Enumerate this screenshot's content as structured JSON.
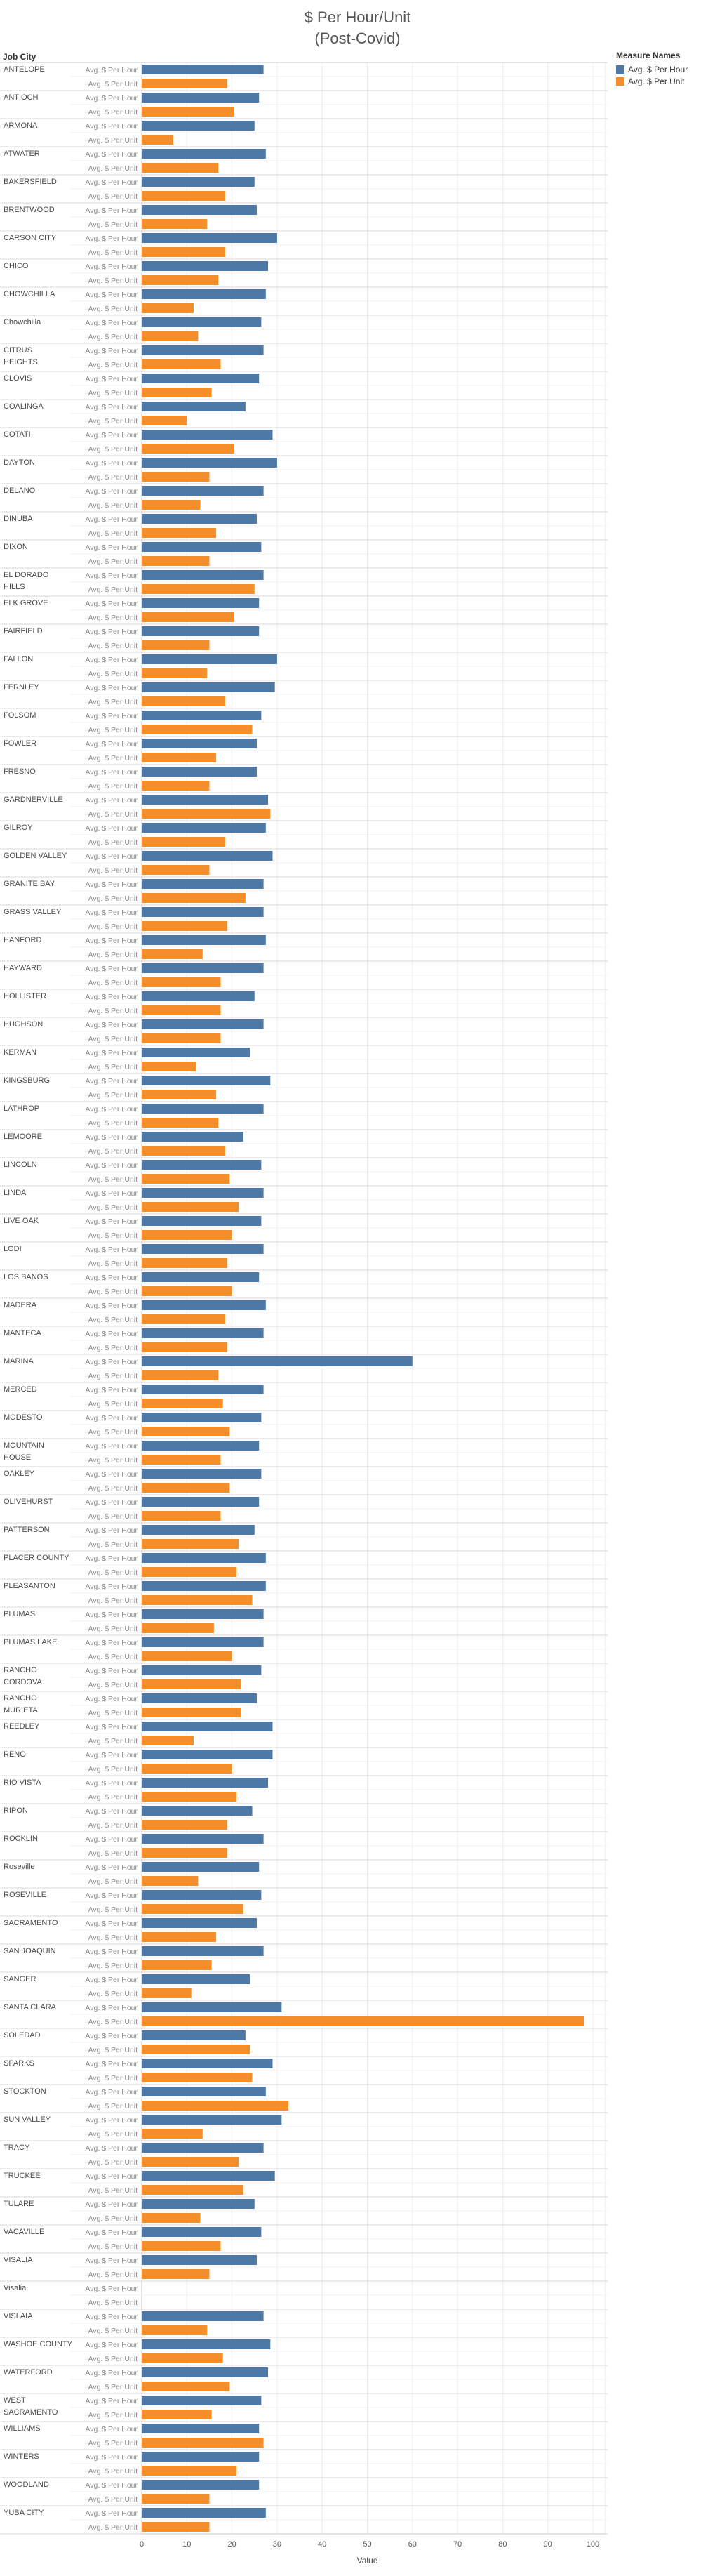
{
  "chart_data": {
    "type": "bar",
    "orientation": "horizontal",
    "title": "$ Per Hour/Unit",
    "subtitle": "(Post-Covid)",
    "row_header": "Job City",
    "xlabel": "Value",
    "xlim": [
      0,
      100
    ],
    "xticks": [
      0,
      10,
      20,
      30,
      40,
      50,
      60,
      70,
      80,
      90,
      100
    ],
    "grid": true,
    "legend": {
      "title": "Measure Names",
      "position": "top-right",
      "items": [
        {
          "name": "Avg. $ Per Hour",
          "color": "#4e79a7"
        },
        {
          "name": "Avg. $ Per Unit",
          "color": "#f28e2b"
        }
      ]
    },
    "measures": [
      "Avg. $ Per Hour",
      "Avg. $ Per Unit"
    ],
    "rows": [
      {
        "city": "ANTELOPE",
        "hour": 27,
        "unit": 19
      },
      {
        "city": "ANTIOCH",
        "hour": 26,
        "unit": 20.5
      },
      {
        "city": "ARMONA",
        "hour": 25,
        "unit": 7
      },
      {
        "city": "ATWATER",
        "hour": 27.5,
        "unit": 17
      },
      {
        "city": "BAKERSFIELD",
        "hour": 25,
        "unit": 18.5
      },
      {
        "city": "BRENTWOOD",
        "hour": 25.5,
        "unit": 14.5
      },
      {
        "city": "CARSON CITY",
        "hour": 30,
        "unit": 18.5
      },
      {
        "city": "CHICO",
        "hour": 28,
        "unit": 17
      },
      {
        "city": "CHOWCHILLA",
        "hour": 27.5,
        "unit": 11.5
      },
      {
        "city": "Chowchilla",
        "hour": 26.5,
        "unit": 12.5
      },
      {
        "city": "CITRUS HEIGHTS",
        "hour": 27,
        "unit": 17.5
      },
      {
        "city": "CLOVIS",
        "hour": 26,
        "unit": 15.5
      },
      {
        "city": "COALINGA",
        "hour": 23,
        "unit": 10
      },
      {
        "city": "COTATI",
        "hour": 29,
        "unit": 20.5
      },
      {
        "city": "DAYTON",
        "hour": 30,
        "unit": 15
      },
      {
        "city": "DELANO",
        "hour": 27,
        "unit": 13
      },
      {
        "city": "DINUBA",
        "hour": 25.5,
        "unit": 16.5
      },
      {
        "city": "DIXON",
        "hour": 26.5,
        "unit": 15
      },
      {
        "city": "EL DORADO HILLS",
        "hour": 27,
        "unit": 25
      },
      {
        "city": "ELK GROVE",
        "hour": 26,
        "unit": 20.5
      },
      {
        "city": "FAIRFIELD",
        "hour": 26,
        "unit": 15
      },
      {
        "city": "FALLON",
        "hour": 30,
        "unit": 14.5
      },
      {
        "city": "FERNLEY",
        "hour": 29.5,
        "unit": 18.5
      },
      {
        "city": "FOLSOM",
        "hour": 26.5,
        "unit": 24.5
      },
      {
        "city": "FOWLER",
        "hour": 25.5,
        "unit": 16.5
      },
      {
        "city": "FRESNO",
        "hour": 25.5,
        "unit": 15
      },
      {
        "city": "GARDNERVILLE",
        "hour": 28,
        "unit": 28.5
      },
      {
        "city": "GILROY",
        "hour": 27.5,
        "unit": 18.5
      },
      {
        "city": "GOLDEN VALLEY",
        "hour": 29,
        "unit": 15
      },
      {
        "city": "GRANITE BAY",
        "hour": 27,
        "unit": 23
      },
      {
        "city": "GRASS VALLEY",
        "hour": 27,
        "unit": 19
      },
      {
        "city": "HANFORD",
        "hour": 27.5,
        "unit": 13.5
      },
      {
        "city": "HAYWARD",
        "hour": 27,
        "unit": 17.5
      },
      {
        "city": "HOLLISTER",
        "hour": 25,
        "unit": 17.5
      },
      {
        "city": "HUGHSON",
        "hour": 27,
        "unit": 17.5
      },
      {
        "city": "KERMAN",
        "hour": 24,
        "unit": 12
      },
      {
        "city": "KINGSBURG",
        "hour": 28.5,
        "unit": 16.5
      },
      {
        "city": "LATHROP",
        "hour": 27,
        "unit": 17
      },
      {
        "city": "LEMOORE",
        "hour": 22.5,
        "unit": 18.5
      },
      {
        "city": "LINCOLN",
        "hour": 26.5,
        "unit": 19.5
      },
      {
        "city": "LINDA",
        "hour": 27,
        "unit": 21.5
      },
      {
        "city": "LIVE OAK",
        "hour": 26.5,
        "unit": 20
      },
      {
        "city": "LODI",
        "hour": 27,
        "unit": 19
      },
      {
        "city": "LOS BANOS",
        "hour": 26,
        "unit": 20
      },
      {
        "city": "MADERA",
        "hour": 27.5,
        "unit": 18.5
      },
      {
        "city": "MANTECA",
        "hour": 27,
        "unit": 19
      },
      {
        "city": "MARINA",
        "hour": 60,
        "unit": 17
      },
      {
        "city": "MERCED",
        "hour": 27,
        "unit": 18
      },
      {
        "city": "MODESTO",
        "hour": 26.5,
        "unit": 19.5
      },
      {
        "city": "MOUNTAIN HOUSE",
        "hour": 26,
        "unit": 17.5
      },
      {
        "city": "OAKLEY",
        "hour": 26.5,
        "unit": 19.5
      },
      {
        "city": "OLIVEHURST",
        "hour": 26,
        "unit": 17.5
      },
      {
        "city": "PATTERSON",
        "hour": 25,
        "unit": 21.5
      },
      {
        "city": "PLACER COUNTY",
        "hour": 27.5,
        "unit": 21
      },
      {
        "city": "PLEASANTON",
        "hour": 27.5,
        "unit": 24.5
      },
      {
        "city": "PLUMAS",
        "hour": 27,
        "unit": 16
      },
      {
        "city": "PLUMAS LAKE",
        "hour": 27,
        "unit": 20
      },
      {
        "city": "RANCHO CORDOVA",
        "hour": 26.5,
        "unit": 22
      },
      {
        "city": "RANCHO MURIETA",
        "hour": 25.5,
        "unit": 22
      },
      {
        "city": "REEDLEY",
        "hour": 29,
        "unit": 11.5
      },
      {
        "city": "RENO",
        "hour": 29,
        "unit": 20
      },
      {
        "city": "RIO VISTA",
        "hour": 28,
        "unit": 21
      },
      {
        "city": "RIPON",
        "hour": 24.5,
        "unit": 19
      },
      {
        "city": "ROCKLIN",
        "hour": 27,
        "unit": 19
      },
      {
        "city": "Roseville",
        "hour": 26,
        "unit": 12.5
      },
      {
        "city": "ROSEVILLE",
        "hour": 26.5,
        "unit": 22.5
      },
      {
        "city": "SACRAMENTO",
        "hour": 25.5,
        "unit": 16.5
      },
      {
        "city": "SAN JOAQUIN",
        "hour": 27,
        "unit": 15.5
      },
      {
        "city": "SANGER",
        "hour": 24,
        "unit": 11
      },
      {
        "city": "SANTA CLARA",
        "hour": 31,
        "unit": 98
      },
      {
        "city": "SOLEDAD",
        "hour": 23,
        "unit": 24
      },
      {
        "city": "SPARKS",
        "hour": 29,
        "unit": 24.5
      },
      {
        "city": "STOCKTON",
        "hour": 27.5,
        "unit": 32.5
      },
      {
        "city": "SUN VALLEY",
        "hour": 31,
        "unit": 13.5
      },
      {
        "city": "TRACY",
        "hour": 27,
        "unit": 21.5
      },
      {
        "city": "TRUCKEE",
        "hour": 29.5,
        "unit": 22.5
      },
      {
        "city": "TULARE",
        "hour": 25,
        "unit": 13
      },
      {
        "city": "VACAVILLE",
        "hour": 26.5,
        "unit": 17.5
      },
      {
        "city": "VISALIA",
        "hour": 25.5,
        "unit": 15
      },
      {
        "city": "Visalia",
        "hour": null,
        "unit": null
      },
      {
        "city": "VISLAIA",
        "hour": 27,
        "unit": 14.5
      },
      {
        "city": "WASHOE COUNTY",
        "hour": 28.5,
        "unit": 18
      },
      {
        "city": "WATERFORD",
        "hour": 28,
        "unit": 19.5
      },
      {
        "city": "WEST SACRAMENTO",
        "hour": 26.5,
        "unit": 15.5
      },
      {
        "city": "WILLIAMS",
        "hour": 26,
        "unit": 27
      },
      {
        "city": "WINTERS",
        "hour": 26,
        "unit": 21
      },
      {
        "city": "WOODLAND",
        "hour": 26,
        "unit": 15
      },
      {
        "city": "YUBA CITY",
        "hour": 27.5,
        "unit": 15
      }
    ]
  }
}
